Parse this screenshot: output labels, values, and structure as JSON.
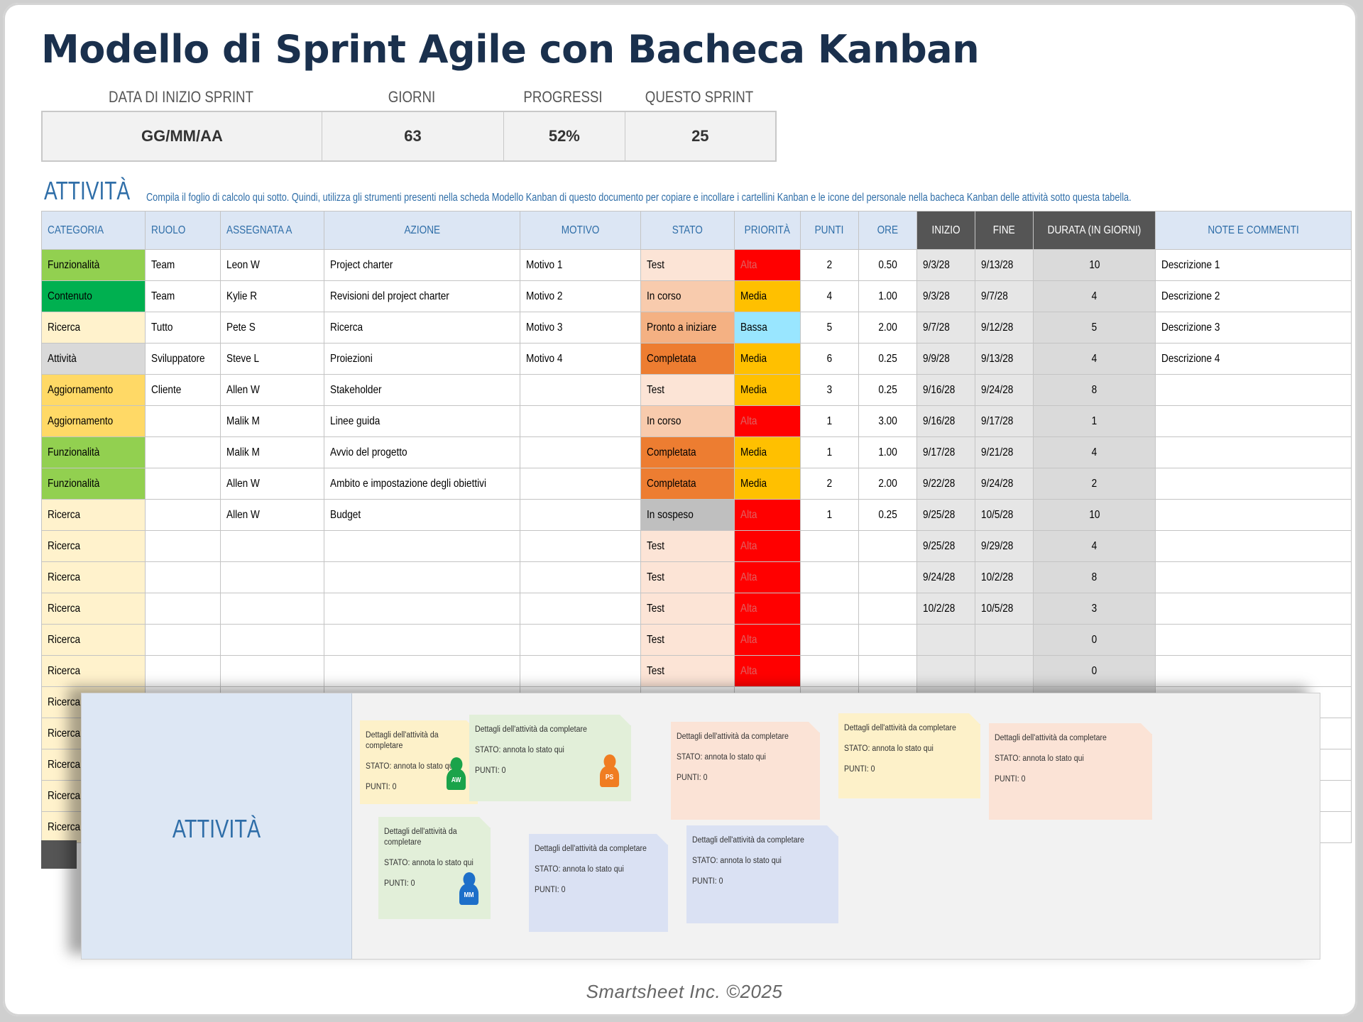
{
  "title": "Modello di Sprint Agile con Bacheca Kanban",
  "summary": {
    "labels": [
      "DATA DI INIZIO SPRINT",
      "GIORNI",
      "PROGRESSI",
      "QUESTO SPRINT"
    ],
    "values": [
      "GG/MM/AA",
      "63",
      "52%",
      "25"
    ]
  },
  "section": {
    "title": "ATTIVITÀ",
    "note": "Compila il foglio di calcolo qui sotto. Quindi, utilizza gli strumenti presenti nella scheda Modello Kanban di questo documento per copiare e incollare i cartellini Kanban e le icone del personale nella bacheca Kanban delle attività sotto questa tabella."
  },
  "table": {
    "headers": [
      "CATEGORIA",
      "RUOLO",
      "ASSEGNATA A",
      "AZIONE",
      "MOTIVO",
      "STATO",
      "PRIORITÀ",
      "PUNTI",
      "ORE",
      "INIZIO",
      "FINE",
      "DURATA (IN GIORNI)",
      "NOTE E COMMENTI"
    ],
    "rows": [
      [
        "Funzionalità",
        "Team",
        "Leon W",
        "Project charter",
        "Motivo 1",
        "Test",
        "Alta",
        "2",
        "0.50",
        "9/3/28",
        "9/13/28",
        "10",
        "Descrizione 1"
      ],
      [
        "Contenuto",
        "Team",
        "Kylie R",
        "Revisioni del project charter",
        "Motivo 2",
        "In corso",
        "Media",
        "4",
        "1.00",
        "9/3/28",
        "9/7/28",
        "4",
        "Descrizione 2"
      ],
      [
        "Ricerca",
        "Tutto",
        "Pete S",
        "Ricerca",
        "Motivo 3",
        "Pronto a iniziare",
        "Bassa",
        "5",
        "2.00",
        "9/7/28",
        "9/12/28",
        "5",
        "Descrizione 3"
      ],
      [
        "Attività",
        "Sviluppatore",
        "Steve L",
        "Proiezioni",
        "Motivo 4",
        "Completata",
        "Media",
        "6",
        "0.25",
        "9/9/28",
        "9/13/28",
        "4",
        "Descrizione 4"
      ],
      [
        "Aggiornamento",
        "Cliente",
        "Allen W",
        "Stakeholder",
        "",
        "Test",
        "Media",
        "3",
        "0.25",
        "9/16/28",
        "9/24/28",
        "8",
        ""
      ],
      [
        "Aggiornamento",
        "",
        "Malik M",
        "Linee guida",
        "",
        "In corso",
        "Alta",
        "1",
        "3.00",
        "9/16/28",
        "9/17/28",
        "1",
        ""
      ],
      [
        "Funzionalità",
        "",
        "Malik M",
        "Avvio del progetto",
        "",
        "Completata",
        "Media",
        "1",
        "1.00",
        "9/17/28",
        "9/21/28",
        "4",
        ""
      ],
      [
        "Funzionalità",
        "",
        "Allen W",
        "Ambito e impostazione degli obiettivi",
        "",
        "Completata",
        "Media",
        "2",
        "2.00",
        "9/22/28",
        "9/24/28",
        "2",
        ""
      ],
      [
        "Ricerca",
        "",
        "Allen W",
        "Budget",
        "",
        "In sospeso",
        "Alta",
        "1",
        "0.25",
        "9/25/28",
        "10/5/28",
        "10",
        ""
      ],
      [
        "Ricerca",
        "",
        "",
        "",
        "",
        "Test",
        "Alta",
        "",
        "",
        "9/25/28",
        "9/29/28",
        "4",
        ""
      ],
      [
        "Ricerca",
        "",
        "",
        "",
        "",
        "Test",
        "Alta",
        "",
        "",
        "9/24/28",
        "10/2/28",
        "8",
        ""
      ],
      [
        "Ricerca",
        "",
        "",
        "",
        "",
        "Test",
        "Alta",
        "",
        "",
        "10/2/28",
        "10/5/28",
        "3",
        ""
      ],
      [
        "Ricerca",
        "",
        "",
        "",
        "",
        "Test",
        "Alta",
        "",
        "",
        "",
        "",
        "0",
        ""
      ],
      [
        "Ricerca",
        "",
        "",
        "",
        "",
        "Test",
        "Alta",
        "",
        "",
        "",
        "",
        "0",
        ""
      ],
      [
        "Ricerca",
        "",
        "",
        "",
        "",
        "",
        "",
        "",
        "",
        "",
        "",
        "",
        ""
      ],
      [
        "Ricerca",
        "",
        "",
        "",
        "",
        "",
        "",
        "",
        "",
        "",
        "",
        "",
        ""
      ],
      [
        "Ricerca",
        "",
        "",
        "",
        "",
        "",
        "",
        "",
        "",
        "",
        "",
        "",
        ""
      ],
      [
        "Ricerca",
        "",
        "",
        "",
        "",
        "",
        "",
        "",
        "",
        "",
        "",
        "",
        ""
      ],
      [
        "Ricerca",
        "",
        "",
        "",
        "",
        "",
        "",
        "",
        "",
        "",
        "",
        "",
        ""
      ]
    ]
  },
  "colors": {
    "categoria": {
      "Funzionalità": "#92d050",
      "Contenuto": "#00b050",
      "Ricerca": "#fff2cc",
      "Attività": "#d9d9d9",
      "Aggiornamento": "#ffd966"
    },
    "stato": {
      "Test": "#fce4d6",
      "In corso": "#f8cbad",
      "Pronto a iniziare": "#f4b183",
      "Completata": "#ed7d31",
      "In sospeso": "#bfbfbf"
    },
    "priorita": {
      "Alta": "#ff0000",
      "Media": "#ffc000",
      "Bassa": "#99e6ff"
    }
  },
  "kanban": {
    "title": "ATTIVITÀ",
    "cards": [
      {
        "details": "Dettagli dell'attività da completare",
        "status": "STATO: annota lo stato qui",
        "points": "PUNTI: 0",
        "color": "yellow",
        "avatar": "AW",
        "avatar_color": "#1aa34a"
      },
      {
        "details": "Dettagli dell'attività da completare",
        "status": "STATO: annota lo stato qui",
        "points": "PUNTI: 0",
        "color": "green",
        "avatar": "PS",
        "avatar_color": "#f07d22"
      },
      {
        "details": "Dettagli dell'attività da completare",
        "status": "STATO: annota lo stato qui",
        "points": "PUNTI: 0",
        "color": "peach",
        "avatar": "",
        "avatar_color": ""
      },
      {
        "details": "Dettagli dell'attività da completare",
        "status": "STATO: annota lo stato qui",
        "points": "PUNTI: 0",
        "color": "yellow",
        "avatar": "",
        "avatar_color": ""
      },
      {
        "details": "Dettagli dell'attività da completare",
        "status": "STATO: annota lo stato qui",
        "points": "PUNTI: 0",
        "color": "peach",
        "avatar": "",
        "avatar_color": ""
      },
      {
        "details": "Dettagli dell'attività da completare",
        "status": "STATO: annota lo stato qui",
        "points": "PUNTI: 0",
        "color": "green",
        "avatar": "MM",
        "avatar_color": "#1d6fc9"
      },
      {
        "details": "Dettagli dell'attività da completare",
        "status": "STATO: annota lo stato qui",
        "points": "PUNTI: 0",
        "color": "blue",
        "avatar": "",
        "avatar_color": ""
      },
      {
        "details": "Dettagli dell'attività da completare",
        "status": "STATO: annota lo stato qui",
        "points": "PUNTI: 0",
        "color": "blue",
        "avatar": "",
        "avatar_color": ""
      }
    ]
  },
  "credit": "Smartsheet Inc. ©2025"
}
